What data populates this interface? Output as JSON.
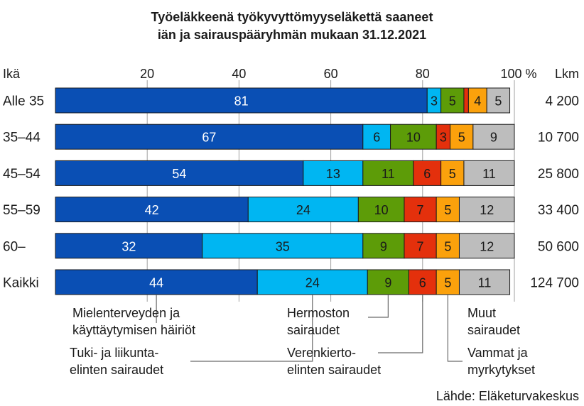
{
  "chart_data": {
    "type": "bar",
    "orientation": "horizontal",
    "stacked": true,
    "title": [
      "Työeläkkeenä työkyvyttömyyseläkettä saaneet",
      "iän ja sairauspääryhmän mukaan 31.12.2021"
    ],
    "row_axis_label": "Ikä",
    "count_axis_label": "Lkm",
    "xlim": [
      0,
      100
    ],
    "x_ticks": [
      {
        "value": 20,
        "label": "20"
      },
      {
        "value": 40,
        "label": "40"
      },
      {
        "value": 60,
        "label": "60"
      },
      {
        "value": 80,
        "label": "80"
      },
      {
        "value": 100,
        "label": "100 %"
      }
    ],
    "categories": [
      "Alle 35",
      "35–44",
      "45–54",
      "55–59",
      "60–",
      "Kaikki"
    ],
    "counts": [
      "4 200",
      "10 700",
      "25 800",
      "33 400",
      "50 600",
      "124 700"
    ],
    "series": [
      {
        "key": "mental",
        "name": "Mielenterveyden ja käyttäytymisen häiriöt",
        "legend_lines": [
          "Mielenterveyden ja",
          "käyttäytymisen häiriöt"
        ],
        "color": "#0a4fb4",
        "label_color": "#ffffff",
        "values": [
          81,
          67,
          54,
          42,
          32,
          44
        ]
      },
      {
        "key": "musculo",
        "name": "Tuki- ja liikuntaelinten sairaudet",
        "legend_lines": [
          "Tuki- ja liikunta-",
          "elinten sairaudet"
        ],
        "color": "#00b6f2",
        "label_color": "#1a1a1a",
        "values": [
          3,
          6,
          13,
          24,
          35,
          24
        ]
      },
      {
        "key": "neuro",
        "name": "Hermoston sairaudet",
        "legend_lines": [
          "Hermoston",
          "sairaudet"
        ],
        "color": "#5d9c08",
        "label_color": "#1a1a1a",
        "values": [
          5,
          10,
          11,
          10,
          9,
          9
        ]
      },
      {
        "key": "circ",
        "name": "Verenkiertoelinten sairaudet",
        "legend_lines": [
          "Verenkierto-",
          "elinten sairaudet"
        ],
        "color": "#e4300c",
        "label_color": "#1a1a1a",
        "values": [
          1,
          3,
          6,
          7,
          7,
          6
        ]
      },
      {
        "key": "injury",
        "name": "Vammat ja myrkytykset",
        "legend_lines": [
          "Vammat ja",
          "myrkytykset"
        ],
        "color": "#fba10c",
        "label_color": "#1a1a1a",
        "values": [
          4,
          5,
          5,
          5,
          5,
          5
        ]
      },
      {
        "key": "other",
        "name": "Muut sairaudet",
        "legend_lines": [
          "Muut",
          "sairaudet"
        ],
        "color": "#bdbdbd",
        "label_color": "#1a1a1a",
        "values": [
          5,
          9,
          11,
          12,
          12,
          11
        ]
      }
    ],
    "unlabeled_segments": [
      {
        "series": "circ",
        "category": "Alle 35"
      }
    ],
    "source": "Lähde: Eläketurvakeskus"
  }
}
